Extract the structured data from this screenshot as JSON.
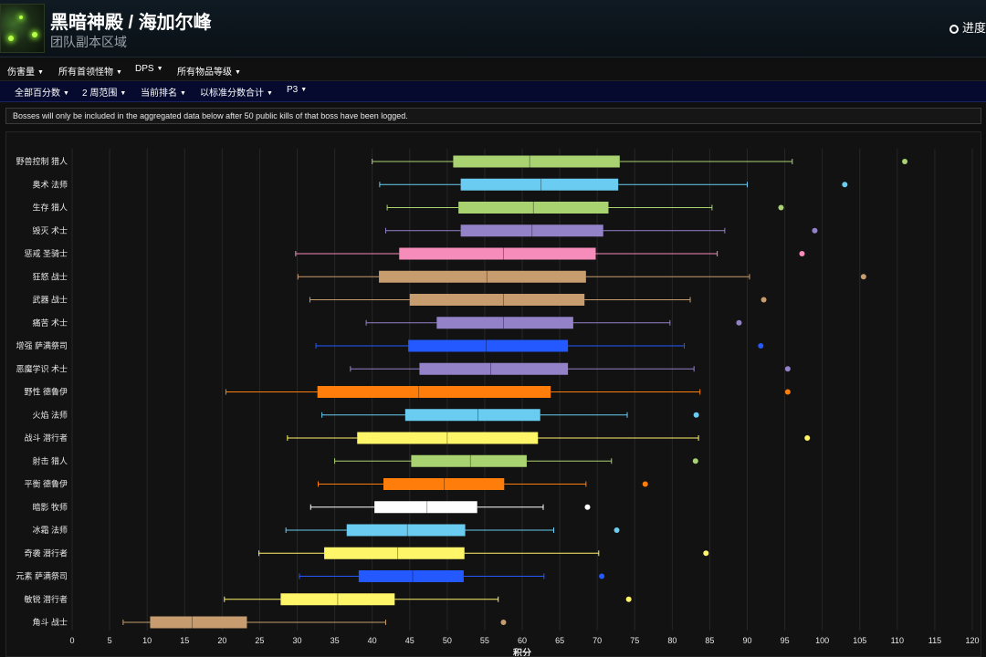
{
  "header": {
    "title": "黑暗神殿 / 海加尔峰",
    "subtitle": "团队副本区域",
    "progress_link": "进度"
  },
  "nav_row1": [
    "伤害量",
    "所有首领怪物",
    "DPS",
    "所有物品等级"
  ],
  "nav_row2": [
    "全部百分数",
    "2 周范围",
    "当前排名",
    "以标准分数合计",
    "P3"
  ],
  "notice": "Bosses will only be included in the aggregated data below after 50 public kills of that boss have been logged.",
  "chart_data": {
    "type": "boxplot",
    "orientation": "horizontal",
    "xlabel": "积分",
    "xlim": [
      0,
      120
    ],
    "x_ticks": [
      0,
      5,
      10,
      15,
      20,
      25,
      30,
      35,
      40,
      45,
      50,
      55,
      60,
      65,
      70,
      75,
      80,
      85,
      90,
      95,
      100,
      105,
      110,
      115,
      120
    ],
    "grid": true,
    "series": [
      {
        "name": "野兽控制 猎人",
        "color": "#a9d271",
        "min": 40,
        "q1": 50.8,
        "median": 61,
        "q3": 73,
        "max": 96,
        "outliers": [
          111
        ]
      },
      {
        "name": "奥术 法师",
        "color": "#69ccf0",
        "min": 41,
        "q1": 51.8,
        "median": 62.5,
        "q3": 72.8,
        "max": 90,
        "outliers": [
          103
        ]
      },
      {
        "name": "生存 猎人",
        "color": "#a9d271",
        "min": 42,
        "q1": 51.5,
        "median": 61.5,
        "q3": 71.5,
        "max": 85.3,
        "outliers": [
          94.5
        ]
      },
      {
        "name": "毁灭 术士",
        "color": "#9482c9",
        "min": 41.8,
        "q1": 51.8,
        "median": 61.3,
        "q3": 70.8,
        "max": 87,
        "outliers": [
          99
        ]
      },
      {
        "name": "惩戒 圣骑士",
        "color": "#f58cba",
        "min": 29.8,
        "q1": 43.6,
        "median": 57.5,
        "q3": 69.8,
        "max": 86,
        "outliers": [
          97.3
        ]
      },
      {
        "name": "狂怒 战士",
        "color": "#c79c6e",
        "min": 30.1,
        "q1": 40.9,
        "median": 55.3,
        "q3": 68.5,
        "max": 90.3,
        "outliers": [
          105.5
        ]
      },
      {
        "name": "武器 战士",
        "color": "#c79c6e",
        "min": 31.7,
        "q1": 45,
        "median": 57.5,
        "q3": 68.3,
        "max": 82.4,
        "outliers": [
          92.2
        ]
      },
      {
        "name": "痛苦 术士",
        "color": "#9482c9",
        "min": 39.2,
        "q1": 48.6,
        "median": 57.5,
        "q3": 66.8,
        "max": 79.7,
        "outliers": [
          88.9
        ]
      },
      {
        "name": "增强 萨满祭司",
        "color": "#2459ff",
        "min": 32.5,
        "q1": 44.8,
        "median": 55.2,
        "q3": 66.1,
        "max": 81.6,
        "outliers": [
          91.8
        ]
      },
      {
        "name": "恶魔学识 术士",
        "color": "#9482c9",
        "min": 37.1,
        "q1": 46.3,
        "median": 55.8,
        "q3": 66.1,
        "max": 82.9,
        "outliers": [
          95.4
        ]
      },
      {
        "name": "野性 德鲁伊",
        "color": "#ff7d0a",
        "min": 20.5,
        "q1": 32.7,
        "median": 46.2,
        "q3": 63.8,
        "max": 83.7,
        "outliers": [
          95.4
        ]
      },
      {
        "name": "火焰 法师",
        "color": "#69ccf0",
        "min": 33.3,
        "q1": 44.4,
        "median": 54.1,
        "q3": 62.4,
        "max": 74,
        "outliers": [
          83.2
        ]
      },
      {
        "name": "战斗 潜行者",
        "color": "#fff569",
        "min": 28.7,
        "q1": 38,
        "median": 50,
        "q3": 62.1,
        "max": 83.5,
        "outliers": [
          98
        ]
      },
      {
        "name": "射击 猎人",
        "color": "#a9d271",
        "min": 35,
        "q1": 45.2,
        "median": 53.1,
        "q3": 60.6,
        "max": 71.9,
        "outliers": [
          83.1
        ]
      },
      {
        "name": "平衡 德鲁伊",
        "color": "#ff7d0a",
        "min": 32.8,
        "q1": 41.5,
        "median": 49.6,
        "q3": 57.6,
        "max": 68.5,
        "outliers": [
          76.4
        ]
      },
      {
        "name": "暗影 牧师",
        "color": "#ffffff",
        "min": 31.8,
        "q1": 40.3,
        "median": 47.3,
        "q3": 54,
        "max": 62.8,
        "outliers": [
          68.7
        ]
      },
      {
        "name": "冰霜 法师",
        "color": "#69ccf0",
        "min": 28.5,
        "q1": 36.6,
        "median": 44.7,
        "q3": 52.4,
        "max": 64.2,
        "outliers": [
          72.6
        ]
      },
      {
        "name": "奇袭 潜行者",
        "color": "#fff569",
        "min": 24.9,
        "q1": 33.6,
        "median": 43.4,
        "q3": 52.3,
        "max": 70.2,
        "outliers": [
          84.5
        ]
      },
      {
        "name": "元素 萨满祭司",
        "color": "#2459ff",
        "min": 30.3,
        "q1": 38.2,
        "median": 45.4,
        "q3": 52.2,
        "max": 62.9,
        "outliers": [
          70.6
        ]
      },
      {
        "name": "敏锐 潜行者",
        "color": "#fff569",
        "min": 20.3,
        "q1": 27.8,
        "median": 35.4,
        "q3": 43,
        "max": 56.8,
        "outliers": [
          74.2
        ]
      },
      {
        "name": "角斗 战士",
        "color": "#c79c6e",
        "min": 6.8,
        "q1": 10.4,
        "median": 16,
        "q3": 23.3,
        "max": 41.8,
        "outliers": [
          57.5
        ]
      }
    ]
  }
}
